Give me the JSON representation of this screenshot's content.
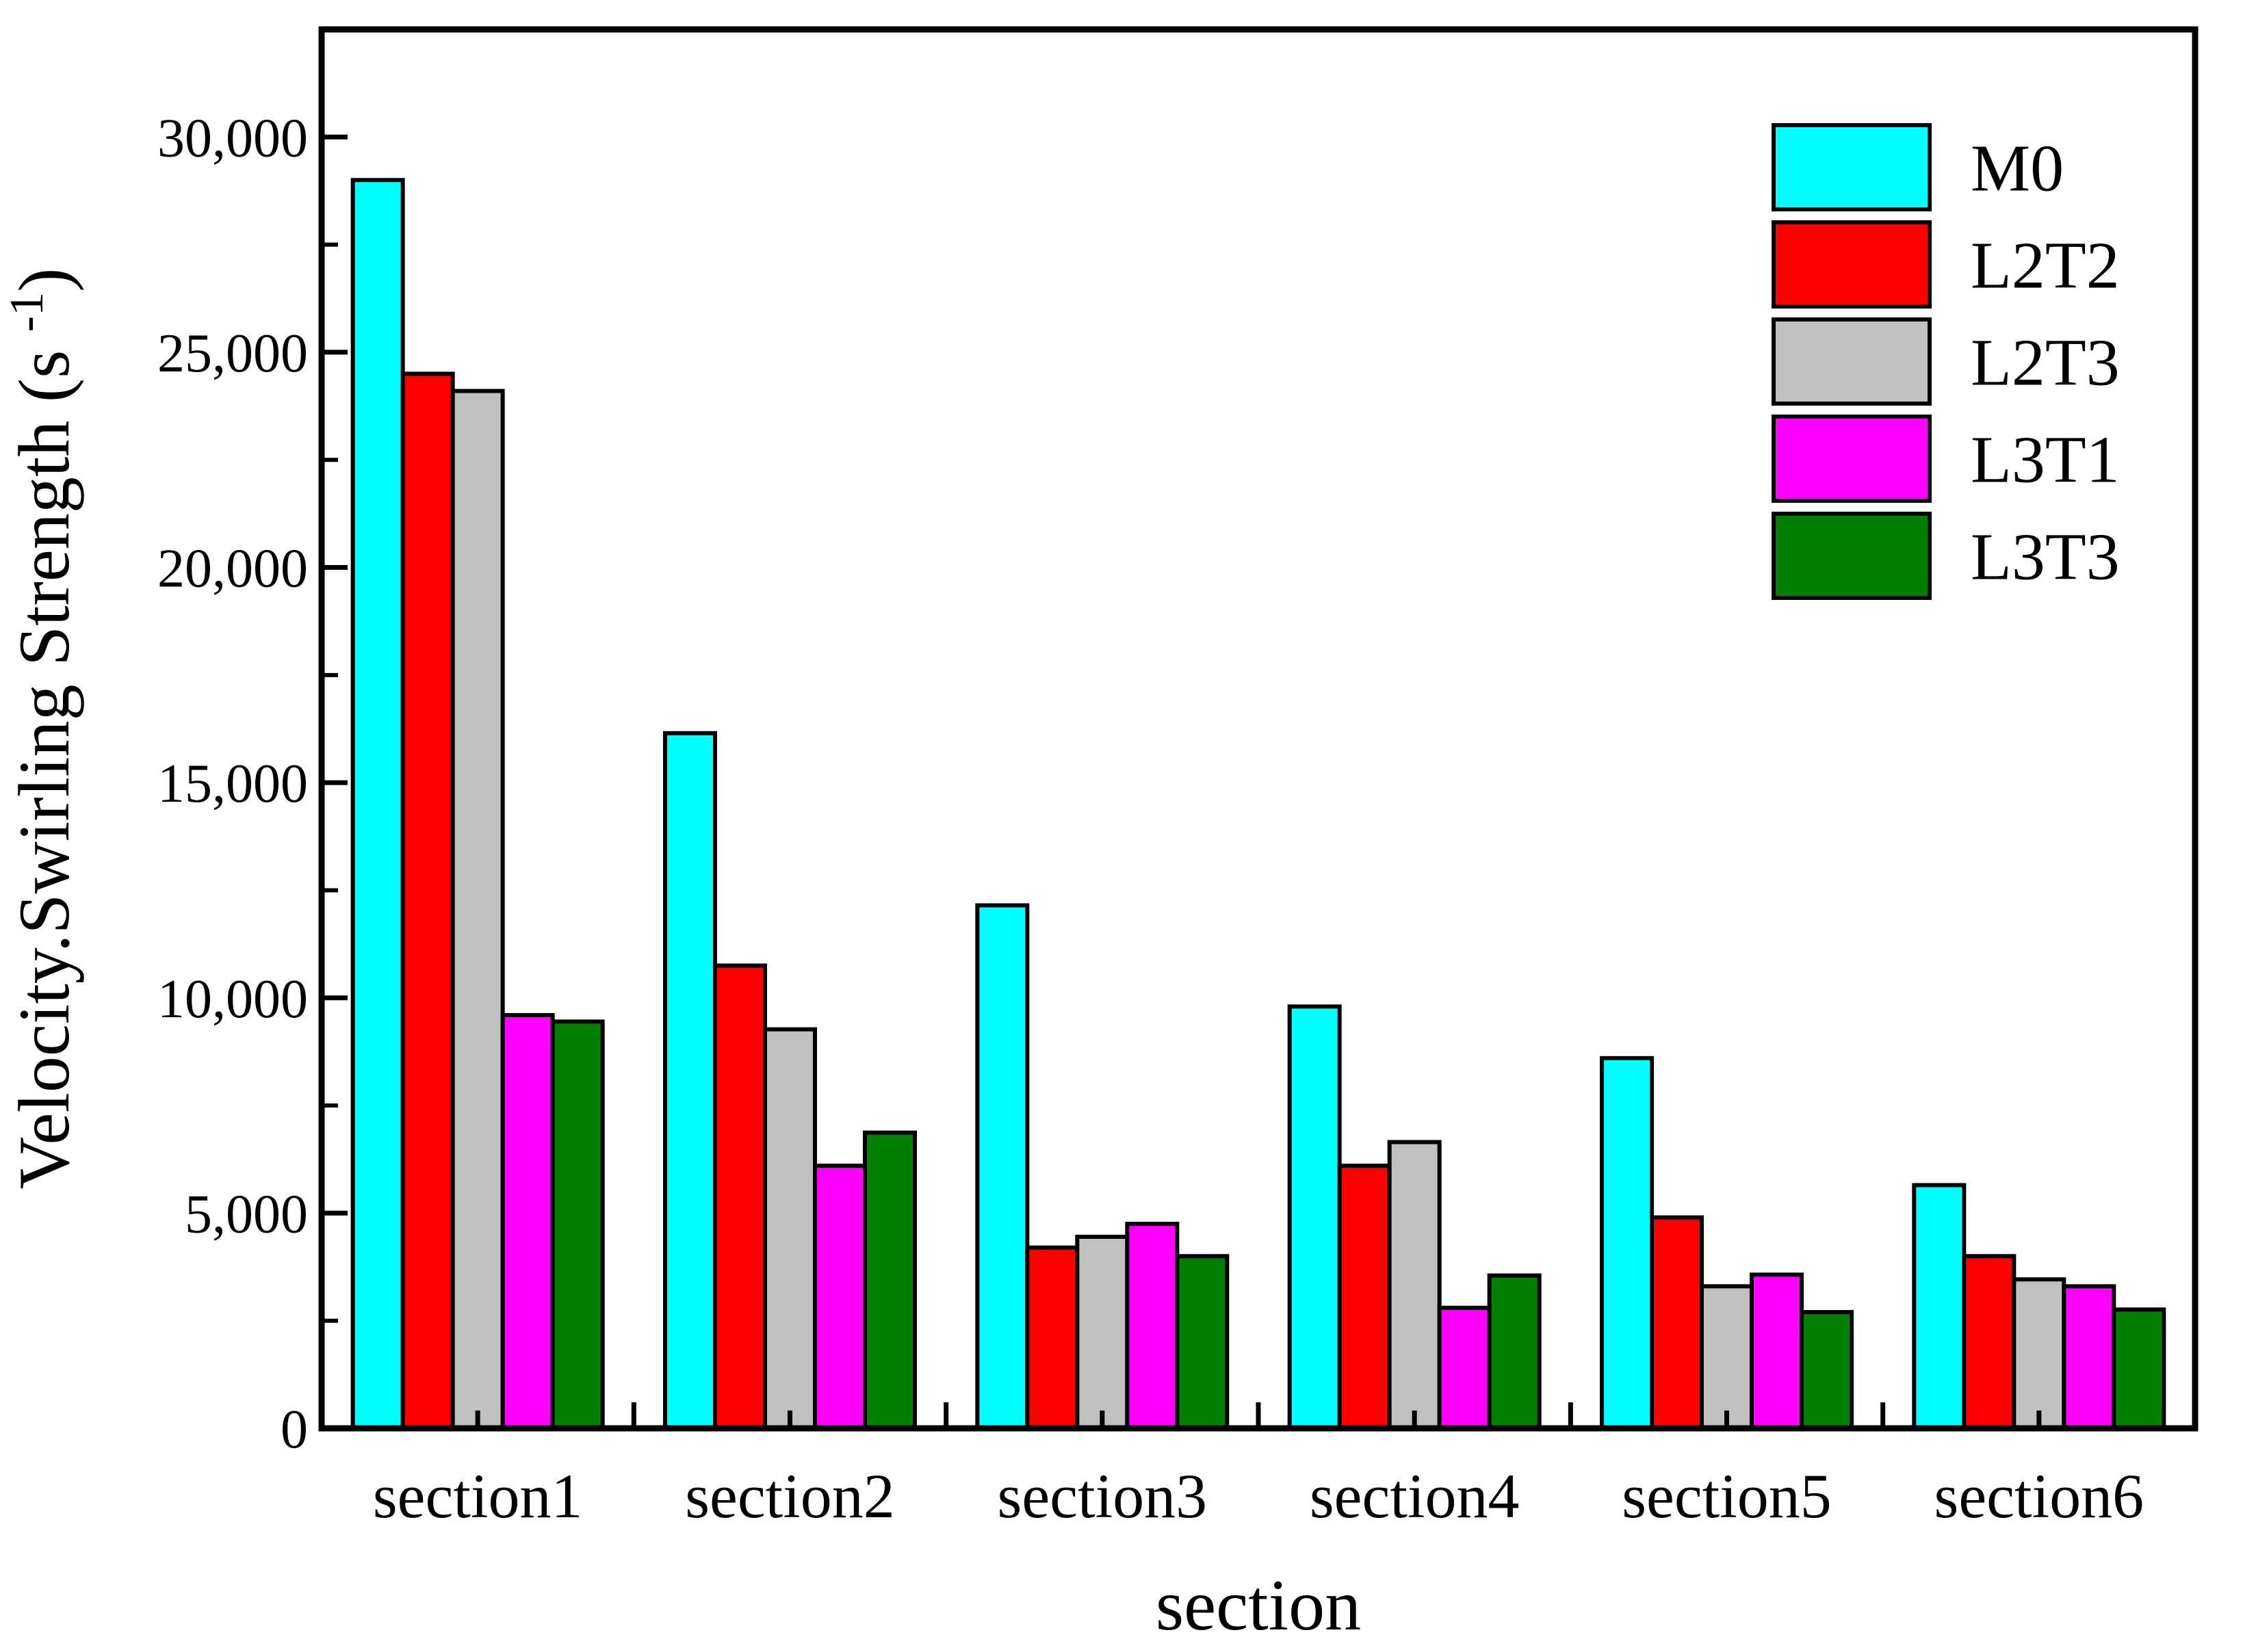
{
  "chart_data": {
    "type": "bar",
    "title": "",
    "xlabel": "section",
    "ylabel": "Velocity.Swirling Strength (s⁻¹)",
    "ylabel_parts": {
      "main": "Velocity.Swirling Strength (s ",
      "sup": "-1",
      "close": ")"
    },
    "categories": [
      "section1",
      "section2",
      "section3",
      "section4",
      "section5",
      "section6"
    ],
    "series": [
      {
        "name": "M0",
        "color": "#00FFFF",
        "values": [
          29000,
          16150,
          12150,
          9800,
          8600,
          5650
        ]
      },
      {
        "name": "L2T2",
        "color": "#FF0000",
        "values": [
          24500,
          10750,
          4200,
          6100,
          4900,
          4000
        ]
      },
      {
        "name": "L2T3",
        "color": "#C0C0C0",
        "values": [
          24100,
          9270,
          4450,
          6650,
          3300,
          3460
        ]
      },
      {
        "name": "L3T1",
        "color": "#FF00FF",
        "values": [
          9600,
          6100,
          4750,
          2800,
          3570,
          3300
        ]
      },
      {
        "name": "L3T3",
        "color": "#008000",
        "values": [
          9450,
          6870,
          4000,
          3550,
          2700,
          2760
        ]
      }
    ],
    "ylim": [
      0,
      32500
    ],
    "ytick_interval": 5000,
    "ytick_minor_interval": 2500,
    "ytick_labels": [
      "0",
      "5,000",
      "10,000",
      "15,000",
      "20,000",
      "25,000",
      "30,000"
    ],
    "grid": false,
    "legend_position": "upper right",
    "bar_edge_color": "#000000",
    "axis_color": "#000000",
    "background": "#FFFFFF"
  }
}
